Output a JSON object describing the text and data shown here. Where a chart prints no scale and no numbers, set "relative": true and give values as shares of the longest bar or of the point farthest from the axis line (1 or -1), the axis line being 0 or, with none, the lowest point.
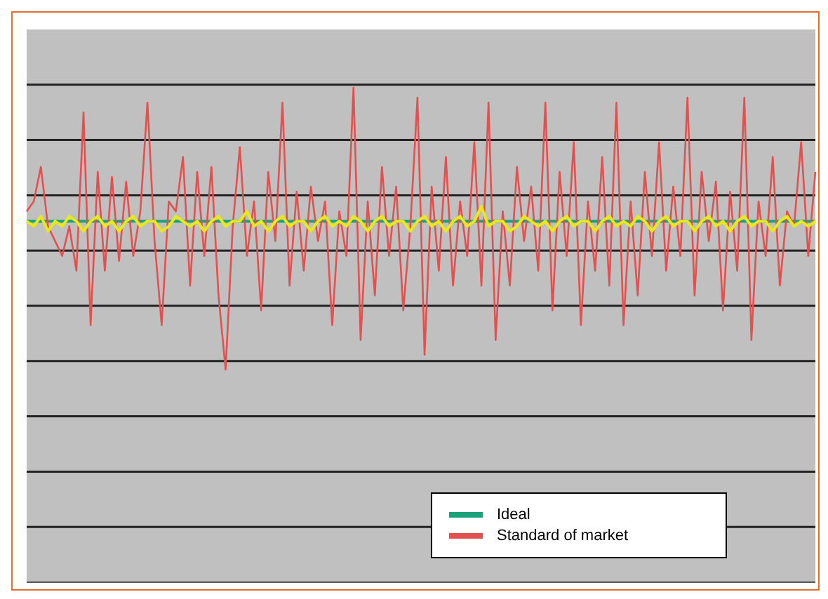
{
  "chart_data": {
    "type": "line",
    "relative": true,
    "grid": "y",
    "legend": "bottom right",
    "marker": "none",
    "line_style": "solid",
    "categories": [
      null,
      null,
      null,
      null,
      null,
      null,
      null,
      null,
      null,
      null,
      null,
      null,
      null,
      null,
      null,
      null,
      null,
      null,
      null,
      null,
      null,
      null,
      null,
      null,
      null,
      null,
      null,
      null,
      null,
      null,
      null,
      null,
      null,
      null,
      null,
      null,
      null,
      null,
      null,
      null,
      null,
      null,
      null,
      null,
      null,
      null,
      null,
      null,
      null,
      null,
      null,
      null,
      null,
      null,
      null,
      null,
      null,
      null,
      null,
      null,
      null,
      null,
      null,
      null,
      null,
      null,
      null,
      null,
      null,
      null,
      null,
      null,
      null,
      null,
      null,
      null,
      null,
      null,
      null,
      null,
      null,
      null,
      null,
      null,
      null,
      null,
      null,
      null,
      null,
      null,
      null,
      null,
      null,
      null,
      null,
      null,
      null,
      null,
      null,
      null,
      null,
      null,
      null,
      null,
      null,
      null,
      null,
      null,
      null,
      null,
      null,
      null
    ],
    "series": [
      {
        "name": "Ideal",
        "color": "#1aa37a",
        "values": [
          0.73,
          0.73,
          0.73,
          0.73,
          0.73,
          0.73,
          0.73,
          0.73,
          0.73,
          0.73,
          0.73,
          0.73,
          0.73,
          0.73,
          0.73,
          0.73,
          0.73,
          0.73,
          0.73,
          0.73,
          0.73,
          0.73,
          0.73,
          0.73,
          0.73,
          0.73,
          0.73,
          0.73,
          0.73,
          0.73,
          0.73,
          0.73,
          0.73,
          0.73,
          0.73,
          0.73,
          0.73,
          0.73,
          0.73,
          0.73,
          0.73,
          0.73,
          0.73,
          0.73,
          0.73,
          0.73,
          0.73,
          0.73,
          0.73,
          0.73,
          0.73,
          0.73,
          0.73,
          0.73,
          0.73,
          0.73,
          0.73,
          0.73,
          0.73,
          0.73,
          0.73,
          0.73,
          0.73,
          0.73,
          0.73,
          0.73,
          0.73,
          0.73,
          0.73,
          0.73,
          0.73,
          0.73,
          0.73,
          0.73,
          0.73,
          0.73,
          0.73,
          0.73,
          0.73,
          0.73,
          0.73,
          0.73,
          0.73,
          0.73,
          0.73,
          0.73,
          0.73,
          0.73,
          0.73,
          0.73,
          0.73,
          0.73,
          0.73,
          0.73,
          0.73,
          0.73,
          0.73,
          0.73,
          0.73,
          0.73,
          0.73,
          0.73,
          0.73,
          0.73,
          0.73,
          0.73,
          0.73,
          0.73,
          0.73,
          0.73,
          0.73,
          0.73
        ]
      },
      {
        "name": "Standard of market",
        "color": "#e2514f",
        "values": [
          0.75,
          0.77,
          0.84,
          0.72,
          0.69,
          0.66,
          0.72,
          0.63,
          0.95,
          0.52,
          0.83,
          0.63,
          0.82,
          0.65,
          0.81,
          0.66,
          0.75,
          0.97,
          0.69,
          0.52,
          0.77,
          0.75,
          0.86,
          0.6,
          0.83,
          0.66,
          0.84,
          0.58,
          0.43,
          0.72,
          0.88,
          0.66,
          0.77,
          0.55,
          0.83,
          0.69,
          0.97,
          0.6,
          0.79,
          0.63,
          0.8,
          0.69,
          0.77,
          0.52,
          0.75,
          0.66,
          1.0,
          0.49,
          0.77,
          0.58,
          0.84,
          0.66,
          0.8,
          0.55,
          0.72,
          0.98,
          0.46,
          0.8,
          0.63,
          0.86,
          0.6,
          0.77,
          0.66,
          0.89,
          0.6,
          0.97,
          0.49,
          0.75,
          0.6,
          0.84,
          0.69,
          0.8,
          0.63,
          0.97,
          0.55,
          0.83,
          0.66,
          0.89,
          0.52,
          0.77,
          0.63,
          0.86,
          0.6,
          0.97,
          0.52,
          0.77,
          0.58,
          0.83,
          0.66,
          0.89,
          0.63,
          0.8,
          0.66,
          0.98,
          0.58,
          0.83,
          0.69,
          0.81,
          0.55,
          0.79,
          0.63,
          0.98,
          0.49,
          0.77,
          0.66,
          0.86,
          0.6,
          0.75,
          0.72,
          0.89,
          0.66,
          0.83
        ]
      },
      {
        "color": "#e8e81a",
        "values": [
          0.73,
          0.72,
          0.74,
          0.71,
          0.73,
          0.72,
          0.74,
          0.73,
          0.71,
          0.73,
          0.74,
          0.72,
          0.73,
          0.71,
          0.73,
          0.74,
          0.72,
          0.73,
          0.73,
          0.71,
          0.72,
          0.74,
          0.73,
          0.72,
          0.73,
          0.71,
          0.73,
          0.74,
          0.72,
          0.73,
          0.73,
          0.75,
          0.72,
          0.73,
          0.71,
          0.73,
          0.74,
          0.72,
          0.73,
          0.73,
          0.71,
          0.73,
          0.74,
          0.72,
          0.73,
          0.72,
          0.74,
          0.73,
          0.71,
          0.73,
          0.74,
          0.72,
          0.73,
          0.73,
          0.71,
          0.73,
          0.74,
          0.72,
          0.73,
          0.71,
          0.73,
          0.74,
          0.72,
          0.73,
          0.76,
          0.72,
          0.73,
          0.73,
          0.71,
          0.72,
          0.74,
          0.73,
          0.72,
          0.73,
          0.71,
          0.73,
          0.74,
          0.72,
          0.73,
          0.73,
          0.71,
          0.73,
          0.74,
          0.72,
          0.73,
          0.72,
          0.74,
          0.73,
          0.71,
          0.73,
          0.74,
          0.72,
          0.73,
          0.73,
          0.71,
          0.73,
          0.74,
          0.72,
          0.73,
          0.71,
          0.73,
          0.74,
          0.72,
          0.73,
          0.73,
          0.71,
          0.73,
          0.74,
          0.72,
          0.73,
          0.72,
          0.73
        ]
      }
    ]
  }
}
